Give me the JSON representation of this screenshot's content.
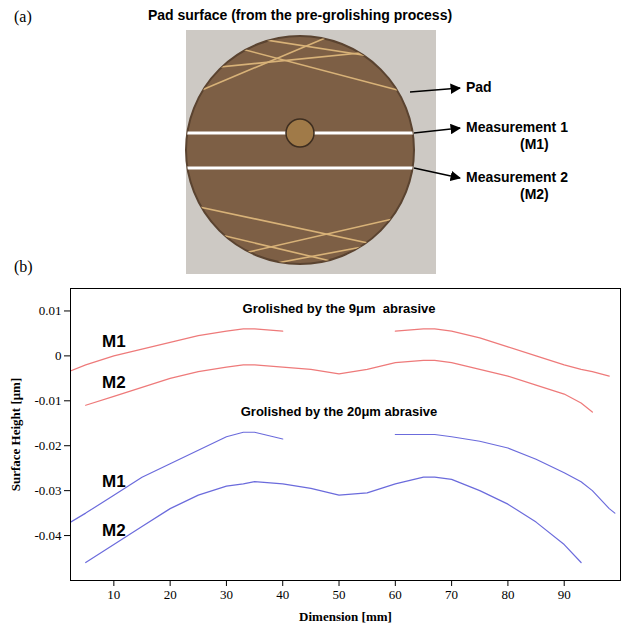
{
  "panel_a": {
    "letter": "(a)",
    "title": "Pad surface (from the pre-grolishing process)",
    "labels": [
      "Pad",
      "Measurement 1 (M1)",
      "Measurement 2 (M2)"
    ]
  },
  "chart_data": {
    "type": "line",
    "panel": "(b)",
    "xlabel": "Dimension [mm]",
    "ylabel": "Surface Height [μm]",
    "xlim": [
      2.3,
      100
    ],
    "xticks": [
      10,
      20,
      30,
      40,
      50,
      60,
      70,
      80,
      90
    ],
    "ylim": [
      -0.05,
      0.015
    ],
    "yticks": [
      -0.04,
      -0.03,
      -0.02,
      -0.01,
      0,
      0.01
    ],
    "x": [
      1,
      5,
      10,
      15,
      20,
      25,
      30,
      33,
      35,
      40,
      45,
      50,
      55,
      60,
      65,
      67,
      70,
      75,
      80,
      85,
      90,
      93,
      95,
      98,
      99
    ],
    "series": [
      {
        "name": "M1",
        "color": "#ee7a7a",
        "values": [
          -0.004,
          -0.002,
          0.0,
          0.0015,
          0.003,
          0.0045,
          0.0055,
          0.006,
          0.006,
          0.0055,
          null,
          null,
          null,
          0.0055,
          0.006,
          0.006,
          0.0055,
          0.004,
          0.002,
          0.0,
          -0.002,
          -0.003,
          -0.0035,
          -0.0045,
          null
        ]
      },
      {
        "name": "M2",
        "color": "#ee7a7a",
        "values": [
          null,
          -0.011,
          -0.009,
          -0.007,
          -0.005,
          -0.0035,
          -0.0025,
          -0.002,
          -0.002,
          -0.0025,
          -0.003,
          -0.004,
          -0.003,
          -0.0015,
          -0.001,
          -0.001,
          -0.0015,
          -0.003,
          -0.0045,
          -0.0065,
          -0.0085,
          -0.0105,
          -0.0125,
          null,
          null
        ]
      },
      {
        "name": "M1",
        "color": "#6b6bdc",
        "values": [
          -0.038,
          -0.035,
          -0.031,
          -0.027,
          -0.024,
          -0.021,
          -0.018,
          -0.017,
          -0.017,
          -0.0185,
          null,
          null,
          null,
          -0.0175,
          -0.0175,
          -0.0175,
          -0.018,
          -0.019,
          -0.0205,
          -0.023,
          -0.026,
          -0.028,
          -0.03,
          -0.034,
          -0.035
        ]
      },
      {
        "name": "M2",
        "color": "#6b6bdc",
        "values": [
          null,
          -0.046,
          -0.042,
          -0.038,
          -0.034,
          -0.031,
          -0.029,
          -0.0285,
          -0.028,
          -0.0285,
          -0.0295,
          -0.031,
          -0.0305,
          -0.0285,
          -0.027,
          -0.027,
          -0.0275,
          -0.03,
          -0.033,
          -0.037,
          -0.042,
          -0.046,
          null,
          null,
          null
        ]
      }
    ],
    "annotations": [
      {
        "text": "Grolished by the 9μm  abrasive",
        "x": 50,
        "y": 0.0105
      },
      {
        "text": "Grolished by the 20μm abrasive",
        "x": 50,
        "y": -0.0125
      }
    ]
  }
}
